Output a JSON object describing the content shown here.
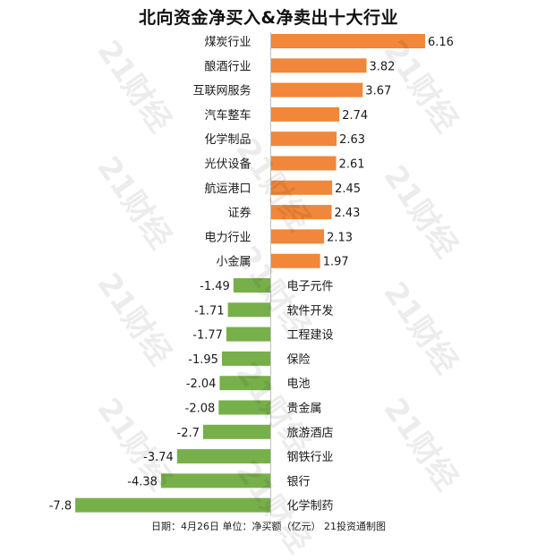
{
  "chart_data": {
    "type": "bar",
    "orientation": "horizontal",
    "title": "北向资金净买入&净卖出十大行业",
    "categories": [
      "煤炭行业",
      "酿酒行业",
      "互联网服务",
      "汽车整车",
      "化学制品",
      "光伏设备",
      "航运港口",
      "证券",
      "电力行业",
      "小金属",
      "电子元件",
      "软件开发",
      "工程建设",
      "保险",
      "电池",
      "贵金属",
      "旅游酒店",
      "钢铁行业",
      "银行",
      "化学制药"
    ],
    "values": [
      6.16,
      3.82,
      3.67,
      2.74,
      2.63,
      2.61,
      2.45,
      2.43,
      2.13,
      1.97,
      -1.49,
      -1.71,
      -1.77,
      -1.95,
      -2.04,
      -2.08,
      -2.7,
      -3.74,
      -4.38,
      -7.8
    ],
    "value_labels": [
      "6.16",
      "3.82",
      "3.67",
      "2.74",
      "2.63",
      "2.61",
      "2.45",
      "2.43",
      "2.13",
      "1.97",
      "-1.49",
      "-1.71",
      "-1.77",
      "-1.95",
      "-2.04",
      "-2.08",
      "-2.7",
      "-3.74",
      "-4.38",
      "-7.8"
    ],
    "colors": {
      "positive": "#F0873A",
      "negative": "#77B04A"
    },
    "xlim": [
      -8,
      6.3
    ],
    "grid": false,
    "legend": "none"
  },
  "footer": "日期：4月26日  单位：净买额（亿元）  21投资通制图",
  "watermark": "21财经"
}
